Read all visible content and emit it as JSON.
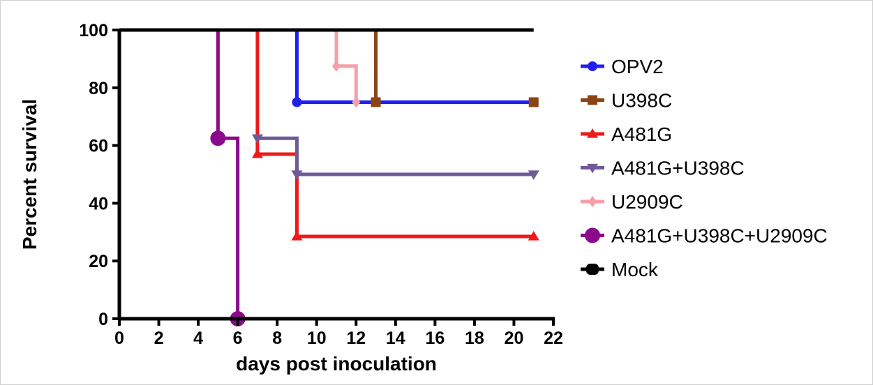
{
  "chart_data": {
    "type": "line",
    "title": "",
    "xlabel": "days post inoculation",
    "ylabel": "Percent survival",
    "xlim": [
      0,
      22
    ],
    "ylim": [
      0,
      100
    ],
    "xticks": [
      0,
      2,
      4,
      6,
      8,
      10,
      12,
      14,
      16,
      18,
      20,
      22
    ],
    "yticks": [
      0,
      20,
      40,
      60,
      80,
      100
    ],
    "grid": false,
    "legend": "right",
    "series": [
      {
        "name": "OPV2",
        "color": "#1f1fee",
        "marker": "circle",
        "steps": [
          [
            0,
            100
          ],
          [
            9,
            75
          ],
          [
            21,
            75
          ]
        ],
        "markers": [
          [
            9,
            75
          ],
          [
            21,
            75
          ]
        ]
      },
      {
        "name": "U398C",
        "color": "#8b4513",
        "marker": "square",
        "steps": [
          [
            9,
            100
          ],
          [
            13,
            75
          ]
        ],
        "markers": [
          [
            13,
            75
          ],
          [
            21,
            75
          ]
        ]
      },
      {
        "name": "A481G",
        "color": "#ee1a1a",
        "marker": "triangle-up",
        "steps": [
          [
            0,
            100
          ],
          [
            7,
            57
          ],
          [
            9,
            28.5
          ],
          [
            21,
            28.5
          ]
        ],
        "markers": [
          [
            7,
            57
          ],
          [
            9,
            28.5
          ],
          [
            21,
            28.5
          ]
        ]
      },
      {
        "name": "A481G+U398C",
        "color": "#6e5a96",
        "marker": "triangle-down",
        "steps": [
          [
            7,
            62.5
          ],
          [
            9,
            50
          ],
          [
            21,
            50
          ]
        ],
        "markers": [
          [
            7,
            62.5
          ],
          [
            9,
            50
          ],
          [
            21,
            50
          ]
        ]
      },
      {
        "name": "U2909C",
        "color": "#f4a0a8",
        "marker": "diamond",
        "steps": [
          [
            10,
            100
          ],
          [
            11,
            87.5
          ],
          [
            12,
            75
          ]
        ],
        "markers": [
          [
            11,
            87.5
          ],
          [
            12,
            75
          ]
        ]
      },
      {
        "name": "A481G+U398C+U2909C",
        "color": "#8b0a8b",
        "marker": "big-circle",
        "steps": [
          [
            0,
            100
          ],
          [
            5,
            62.5
          ],
          [
            6,
            0
          ]
        ],
        "markers": [
          [
            5,
            62.5
          ],
          [
            6,
            0
          ]
        ]
      },
      {
        "name": "Mock",
        "color": "#000000",
        "marker": "hexagon",
        "steps": [
          [
            0,
            100
          ],
          [
            21,
            100
          ]
        ],
        "markers": []
      }
    ]
  }
}
